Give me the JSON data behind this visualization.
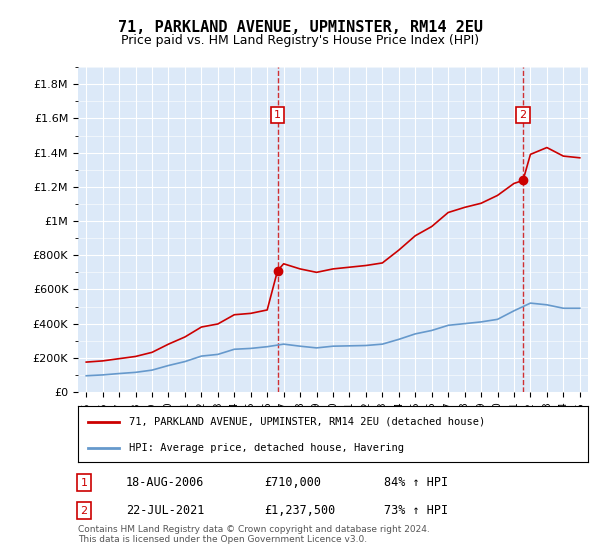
{
  "title": "71, PARKLAND AVENUE, UPMINSTER, RM14 2EU",
  "subtitle": "Price paid vs. HM Land Registry's House Price Index (HPI)",
  "legend_line1": "71, PARKLAND AVENUE, UPMINSTER, RM14 2EU (detached house)",
  "legend_line2": "HPI: Average price, detached house, Havering",
  "sale1_label": "1",
  "sale1_date": "18-AUG-2006",
  "sale1_price": "£710,000",
  "sale1_hpi": "84% ↑ HPI",
  "sale2_label": "2",
  "sale2_date": "22-JUL-2021",
  "sale2_price": "£1,237,500",
  "sale2_hpi": "73% ↑ HPI",
  "copyright": "Contains HM Land Registry data © Crown copyright and database right 2024.\nThis data is licensed under the Open Government Licence v3.0.",
  "background_color": "#dce9f8",
  "plot_bg_color": "#dce9f8",
  "red_color": "#cc0000",
  "blue_color": "#6699cc",
  "sale_marker_color": "#cc0000",
  "grid_color": "#ffffff",
  "ylim": [
    0,
    1900000
  ],
  "xlim_start": 1994.5,
  "xlim_end": 2025.5,
  "sale1_x": 2006.63,
  "sale1_y": 710000,
  "sale2_x": 2021.55,
  "sale2_y": 1237500,
  "hpi_years": [
    1995,
    1996,
    1997,
    1998,
    1999,
    2000,
    2001,
    2002,
    2003,
    2004,
    2005,
    2006,
    2007,
    2008,
    2009,
    2010,
    2011,
    2012,
    2013,
    2014,
    2015,
    2016,
    2017,
    2018,
    2019,
    2020,
    2021,
    2022,
    2023,
    2024,
    2025
  ],
  "hpi_values": [
    95000,
    100000,
    108000,
    115000,
    128000,
    155000,
    178000,
    210000,
    220000,
    250000,
    255000,
    265000,
    280000,
    268000,
    258000,
    268000,
    270000,
    272000,
    280000,
    308000,
    340000,
    360000,
    390000,
    400000,
    410000,
    425000,
    475000,
    520000,
    510000,
    490000,
    490000
  ],
  "red_years": [
    1995,
    1996,
    1997,
    1998,
    1999,
    2000,
    2001,
    2002,
    2003,
    2004,
    2005,
    2006,
    2006.63,
    2007,
    2008,
    2009,
    2010,
    2011,
    2012,
    2013,
    2014,
    2015,
    2016,
    2017,
    2018,
    2019,
    2020,
    2021,
    2021.55,
    2022,
    2023,
    2024,
    2025
  ],
  "red_values": [
    175000,
    182000,
    195000,
    208000,
    232000,
    280000,
    322000,
    380000,
    398000,
    452000,
    460000,
    480000,
    710000,
    750000,
    720000,
    700000,
    720000,
    730000,
    740000,
    755000,
    830000,
    914000,
    968000,
    1050000,
    1080000,
    1104000,
    1150000,
    1220000,
    1237500,
    1390000,
    1430000,
    1380000,
    1370000
  ]
}
